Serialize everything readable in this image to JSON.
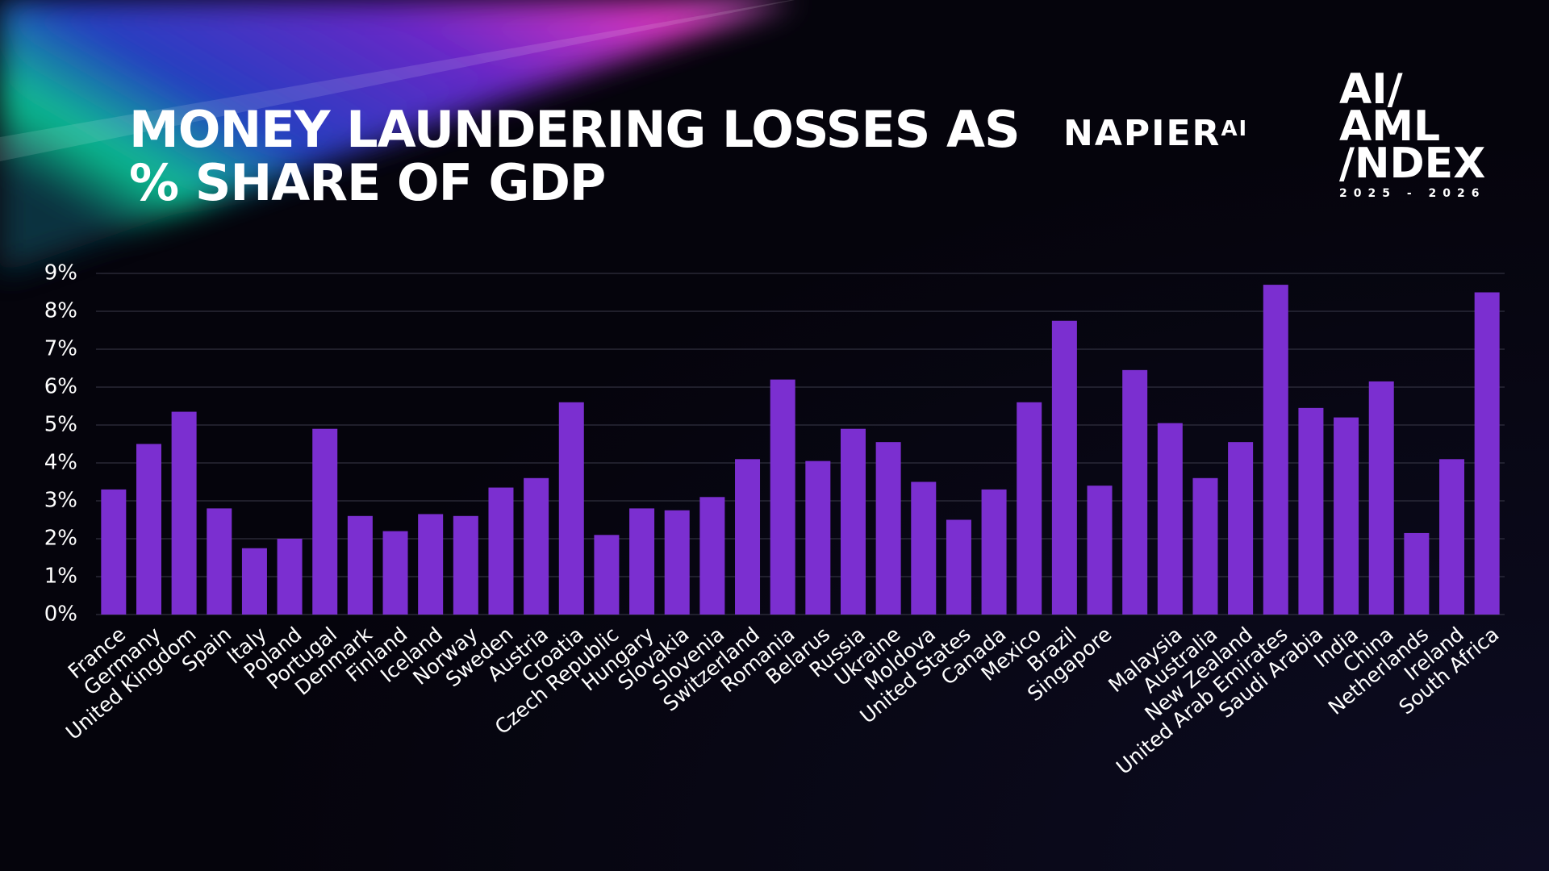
{
  "header": {
    "title": "MONEY LAUNDERING LOSSES AS % SHARE OF GDP",
    "brand": "NAPIER",
    "brand_suffix": "AI",
    "index_lines": [
      "AI/",
      "AML",
      "/NDEX"
    ],
    "index_years": "2025 - 2026"
  },
  "chart_data": {
    "type": "bar",
    "color": "#7b2fd0",
    "categories": [
      "France",
      "Germany",
      "United Kingdom",
      "Spain",
      "Italy",
      "Poland",
      "Portugal",
      "Denmark",
      "Finland",
      "Iceland",
      "Norway",
      "Sweden",
      "Austria",
      "Croatia",
      "Czech Republic",
      "Hungary",
      "Slovakia",
      "Slovenia",
      "Switzerland",
      "Romania",
      "Belarus",
      "Russia",
      "Ukraine",
      "Moldova",
      "United States",
      "Canada",
      "Mexico",
      "Brazil",
      "Singapore",
      null,
      "Malaysia",
      "Australia",
      "New Zealand",
      "United Arab Emirates",
      "Saudi Arabia",
      "India",
      "China",
      "Netherlands",
      "Ireland",
      "South Africa"
    ],
    "values": [
      3.3,
      4.5,
      5.35,
      2.8,
      1.75,
      2.0,
      4.9,
      2.6,
      2.2,
      2.65,
      2.6,
      3.35,
      3.6,
      5.6,
      2.1,
      2.8,
      2.75,
      3.1,
      4.1,
      6.2,
      4.05,
      4.9,
      4.55,
      3.5,
      2.5,
      3.3,
      5.6,
      7.75,
      3.4,
      6.45,
      5.05,
      3.6,
      4.55,
      8.7,
      5.45,
      5.2,
      6.15,
      2.15,
      4.1,
      8.5
    ],
    "ylim": [
      0,
      9
    ],
    "yticks": [
      {
        "value": 0,
        "label": "0%"
      },
      {
        "value": 1,
        "label": "1%"
      },
      {
        "value": 2,
        "label": "2%"
      },
      {
        "value": 3,
        "label": "3%"
      },
      {
        "value": 4,
        "label": "4%"
      },
      {
        "value": 5,
        "label": "5%"
      },
      {
        "value": 6,
        "label": "6%"
      },
      {
        "value": 7,
        "label": "7%"
      },
      {
        "value": 8,
        "label": "8%"
      },
      {
        "value": 9,
        "label": "9%"
      }
    ],
    "grid": true
  }
}
